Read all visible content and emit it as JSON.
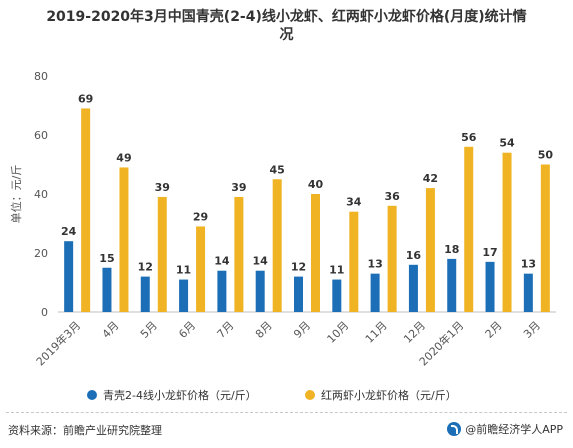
{
  "chart_data": {
    "type": "bar",
    "title": "2019-2020年3月中国青壳(2-4)线小龙虾、红两虾小龙虾价格(月度)统计情况",
    "title_lines": [
      "2019-2020年3月中国青壳(2-4)线小龙虾、红两虾小龙虾价格(月度)统计情",
      "况"
    ],
    "categories": [
      "2019年3月",
      "4月",
      "5月",
      "6月",
      "7月",
      "8月",
      "9月",
      "10月",
      "11月",
      "12月",
      "2020年1月",
      "2月",
      "3月"
    ],
    "series": [
      {
        "name": "青壳2-4线小龙虾价格（元/斤）",
        "color": "#1c6fb6",
        "values": [
          24,
          15,
          12,
          11,
          14,
          14,
          12,
          11,
          13,
          16,
          18,
          17,
          13
        ]
      },
      {
        "name": "红两虾小龙虾价格（元/斤）",
        "color": "#f0b323",
        "values": [
          69,
          49,
          39,
          29,
          39,
          45,
          40,
          34,
          36,
          42,
          56,
          54,
          50
        ]
      }
    ],
    "ylabel": "单位：元/斤",
    "xlabel": "",
    "ylim": [
      0,
      80
    ],
    "yticks": [
      0,
      20,
      40,
      60,
      80
    ],
    "grid": false,
    "legend": "bottom"
  },
  "footer": {
    "source": "资料来源：前瞻产业研究院整理",
    "brand": "@前瞻经济学人APP"
  }
}
